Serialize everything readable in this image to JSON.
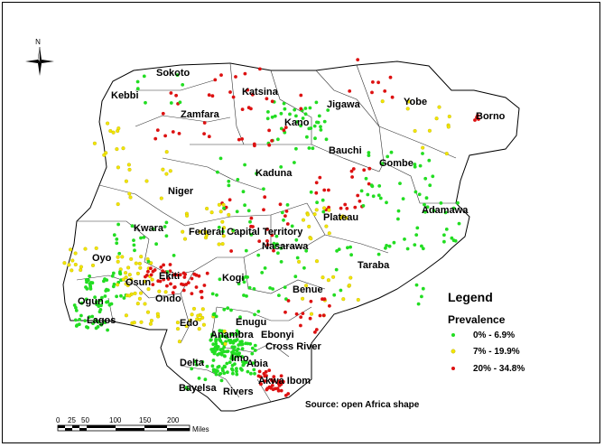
{
  "map": {
    "states": [
      "Sokoto",
      "Kebbi",
      "Zamfara",
      "Katsina",
      "Kano",
      "Jigawa",
      "Yobe",
      "Borno",
      "Gombe",
      "Bauchi",
      "Kaduna",
      "Niger",
      "Adamawa",
      "Plateau",
      "Kwara",
      "Federal Capital Territory",
      "Nasarawa",
      "Oyo",
      "Taraba",
      "Ekiti",
      "Osun",
      "Kogi",
      "Ondo",
      "Ogun",
      "Benue",
      "Lagos",
      "Edo",
      "Enugu",
      "Anambra",
      "Ebonyi",
      "Cross River",
      "Delta",
      "Imo",
      "Abia",
      "Akwa Ibom",
      "Bayelsa",
      "Rivers"
    ],
    "source_text": "Source: open Africa shape",
    "north_label": "N"
  },
  "legend": {
    "title": "Legend",
    "subtitle": "Prevalence",
    "items": [
      {
        "label": "0% - 6.9%",
        "color": "#22dd22"
      },
      {
        "label": "7% - 19.9%",
        "color": "#f2e600"
      },
      {
        "label": "20% - 34.8%",
        "color": "#dd1111"
      }
    ]
  },
  "scale_bar": {
    "ticks": [
      "0",
      "25",
      "50",
      "100",
      "150",
      "200"
    ],
    "unit": "Miles"
  },
  "colors": {
    "low": "#22dd22",
    "mid": "#f2e600",
    "high": "#dd1111"
  }
}
